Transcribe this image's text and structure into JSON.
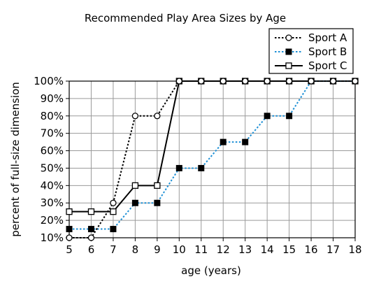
{
  "chart_data": {
    "type": "line",
    "title": "Recommended Play Area Sizes by Age",
    "xlabel": "age (years)",
    "ylabel": "percent of full-size dimension",
    "x": [
      5,
      6,
      7,
      8,
      9,
      10,
      11,
      12,
      13,
      14,
      15,
      16,
      17,
      18
    ],
    "xlim": [
      5,
      18
    ],
    "ylim": [
      10,
      100
    ],
    "x_ticks": [
      "5",
      "6",
      "7",
      "8",
      "9",
      "10",
      "11",
      "12",
      "13",
      "14",
      "15",
      "16",
      "17",
      "18"
    ],
    "y_ticks": [
      "10%",
      "20%",
      "30%",
      "40%",
      "50%",
      "60%",
      "70%",
      "80%",
      "90%",
      "100%"
    ],
    "y_tick_values": [
      10,
      20,
      30,
      40,
      50,
      60,
      70,
      80,
      90,
      100
    ],
    "grid": true,
    "legend_position": "top-right",
    "series": [
      {
        "name": "Sport A",
        "color": "#000000",
        "line_style": "dotted",
        "marker": "open-circle",
        "values": [
          10,
          10,
          30,
          80,
          80,
          100,
          100,
          100,
          100,
          100,
          100,
          100,
          100,
          100
        ]
      },
      {
        "name": "Sport B",
        "color": "#1e90d6",
        "line_style": "dotted",
        "marker": "filled-square",
        "values": [
          15,
          15,
          15,
          30,
          30,
          50,
          50,
          65,
          65,
          80,
          80,
          100,
          100,
          100
        ]
      },
      {
        "name": "Sport C",
        "color": "#000000",
        "line_style": "solid",
        "marker": "open-square",
        "values": [
          25,
          25,
          25,
          40,
          40,
          100,
          100,
          100,
          100,
          100,
          100,
          100,
          100,
          100
        ]
      }
    ]
  }
}
